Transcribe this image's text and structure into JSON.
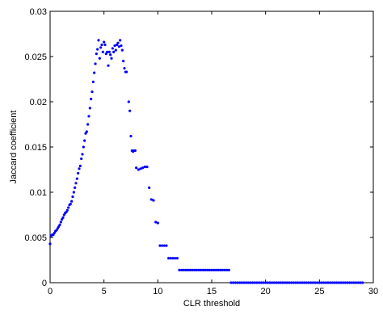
{
  "chart_data": {
    "type": "scatter",
    "title": "",
    "xlabel": "CLR threshold",
    "ylabel": "Jaccard coefficient",
    "xlim": [
      0,
      30
    ],
    "ylim": [
      0,
      0.03
    ],
    "xticks": [
      0,
      5,
      10,
      15,
      20,
      25,
      30
    ],
    "xtick_labels": [
      "0",
      "5",
      "10",
      "15",
      "20",
      "25",
      "30"
    ],
    "yticks": [
      0,
      0.005,
      0.01,
      0.015,
      0.02,
      0.025,
      0.03
    ],
    "ytick_labels": [
      "0",
      "0.005",
      "0.01",
      "0.015",
      "0.02",
      "0.025",
      "0.03"
    ],
    "grid": false,
    "legend": false,
    "marker_color": "#0000ff",
    "axis_color": "#000000",
    "series": [
      {
        "points": [
          [
            0.0,
            0.0043
          ],
          [
            0.1,
            0.0052
          ],
          [
            0.2,
            0.0053
          ],
          [
            0.3,
            0.0053
          ],
          [
            0.4,
            0.0055
          ],
          [
            0.5,
            0.0057
          ],
          [
            0.6,
            0.0058
          ],
          [
            0.7,
            0.006
          ],
          [
            0.8,
            0.0062
          ],
          [
            0.9,
            0.0064
          ],
          [
            1.0,
            0.0067
          ],
          [
            1.1,
            0.007
          ],
          [
            1.2,
            0.0072
          ],
          [
            1.3,
            0.0075
          ],
          [
            1.4,
            0.0077
          ],
          [
            1.5,
            0.0078
          ],
          [
            1.6,
            0.008
          ],
          [
            1.7,
            0.0083
          ],
          [
            1.8,
            0.0086
          ],
          [
            1.9,
            0.0087
          ],
          [
            2.0,
            0.009
          ],
          [
            2.1,
            0.0095
          ],
          [
            2.2,
            0.01
          ],
          [
            2.3,
            0.0105
          ],
          [
            2.4,
            0.011
          ],
          [
            2.5,
            0.0115
          ],
          [
            2.6,
            0.0121
          ],
          [
            2.7,
            0.0126
          ],
          [
            2.8,
            0.0129
          ],
          [
            2.9,
            0.0137
          ],
          [
            3.0,
            0.0142
          ],
          [
            3.1,
            0.015
          ],
          [
            3.2,
            0.0157
          ],
          [
            3.3,
            0.0165
          ],
          [
            3.4,
            0.0167
          ],
          [
            3.5,
            0.0175
          ],
          [
            3.6,
            0.0184
          ],
          [
            3.7,
            0.0193
          ],
          [
            3.8,
            0.0203
          ],
          [
            3.9,
            0.0211
          ],
          [
            4.0,
            0.0222
          ],
          [
            4.1,
            0.0232
          ],
          [
            4.2,
            0.0242
          ],
          [
            4.3,
            0.0253
          ],
          [
            4.4,
            0.0258
          ],
          [
            4.5,
            0.0268
          ],
          [
            4.6,
            0.0248
          ],
          [
            4.7,
            0.026
          ],
          [
            4.8,
            0.0263
          ],
          [
            4.9,
            0.0255
          ],
          [
            5.0,
            0.0266
          ],
          [
            5.1,
            0.0263
          ],
          [
            5.2,
            0.0253
          ],
          [
            5.3,
            0.0255
          ],
          [
            5.4,
            0.024
          ],
          [
            5.5,
            0.0255
          ],
          [
            5.6,
            0.0252
          ],
          [
            5.7,
            0.0248
          ],
          [
            5.8,
            0.0259
          ],
          [
            5.9,
            0.0255
          ],
          [
            6.0,
            0.0262
          ],
          [
            6.1,
            0.0257
          ],
          [
            6.2,
            0.0263
          ],
          [
            6.3,
            0.0265
          ],
          [
            6.4,
            0.0261
          ],
          [
            6.5,
            0.0268
          ],
          [
            6.6,
            0.0262
          ],
          [
            6.7,
            0.0257
          ],
          [
            6.8,
            0.0245
          ],
          [
            6.9,
            0.0237
          ],
          [
            7.0,
            0.0233
          ],
          [
            7.1,
            0.0233
          ],
          [
            7.3,
            0.02
          ],
          [
            7.4,
            0.019
          ],
          [
            7.5,
            0.0162
          ],
          [
            7.6,
            0.0146
          ],
          [
            7.7,
            0.0145
          ],
          [
            7.8,
            0.0146
          ],
          [
            7.9,
            0.0146
          ],
          [
            8.0,
            0.0127
          ],
          [
            8.2,
            0.0125
          ],
          [
            8.4,
            0.0126
          ],
          [
            8.6,
            0.0127
          ],
          [
            8.8,
            0.0128
          ],
          [
            9.0,
            0.0128
          ],
          [
            9.2,
            0.0105
          ],
          [
            9.4,
            0.0092
          ],
          [
            9.6,
            0.0091
          ],
          [
            9.8,
            0.0067
          ],
          [
            10.0,
            0.0066
          ],
          [
            10.2,
            0.0041
          ],
          [
            10.4,
            0.0041
          ],
          [
            10.6,
            0.0041
          ],
          [
            10.8,
            0.0041
          ],
          [
            11.0,
            0.0027
          ],
          [
            11.2,
            0.0027
          ],
          [
            11.4,
            0.0027
          ],
          [
            11.6,
            0.0027
          ],
          [
            11.8,
            0.0027
          ],
          [
            12.0,
            0.0014
          ],
          [
            12.2,
            0.0014
          ],
          [
            12.4,
            0.0014
          ],
          [
            12.6,
            0.0014
          ],
          [
            12.8,
            0.0014
          ],
          [
            13.0,
            0.0014
          ],
          [
            13.2,
            0.0014
          ],
          [
            13.4,
            0.0014
          ],
          [
            13.6,
            0.0014
          ],
          [
            13.8,
            0.0014
          ],
          [
            14.0,
            0.0014
          ],
          [
            14.2,
            0.0014
          ],
          [
            14.4,
            0.0014
          ],
          [
            14.6,
            0.0014
          ],
          [
            14.8,
            0.0014
          ],
          [
            15.0,
            0.0014
          ],
          [
            15.2,
            0.0014
          ],
          [
            15.4,
            0.0014
          ],
          [
            15.6,
            0.0014
          ],
          [
            15.8,
            0.0014
          ],
          [
            16.0,
            0.0014
          ],
          [
            16.2,
            0.0014
          ],
          [
            16.4,
            0.0014
          ],
          [
            16.6,
            0.0014
          ],
          [
            16.8,
            0.0
          ],
          [
            17.0,
            0.0
          ],
          [
            17.2,
            0.0
          ],
          [
            17.4,
            0.0
          ],
          [
            17.6,
            0.0
          ],
          [
            17.8,
            0.0
          ],
          [
            18.0,
            0.0
          ],
          [
            18.2,
            0.0
          ],
          [
            18.4,
            0.0
          ],
          [
            18.6,
            0.0
          ],
          [
            18.8,
            0.0
          ],
          [
            19.0,
            0.0
          ],
          [
            19.2,
            0.0
          ],
          [
            19.4,
            0.0
          ],
          [
            19.6,
            0.0
          ],
          [
            19.8,
            0.0
          ],
          [
            20.0,
            0.0
          ],
          [
            20.2,
            0.0
          ],
          [
            20.4,
            0.0
          ],
          [
            20.6,
            0.0
          ],
          [
            20.8,
            0.0
          ],
          [
            21.0,
            0.0
          ],
          [
            21.2,
            0.0
          ],
          [
            21.4,
            0.0
          ],
          [
            21.6,
            0.0
          ],
          [
            21.8,
            0.0
          ],
          [
            22.0,
            0.0
          ],
          [
            22.2,
            0.0
          ],
          [
            22.4,
            0.0
          ],
          [
            22.6,
            0.0
          ],
          [
            22.8,
            0.0
          ],
          [
            23.0,
            0.0
          ],
          [
            23.2,
            0.0
          ],
          [
            23.4,
            0.0
          ],
          [
            23.6,
            0.0
          ],
          [
            23.8,
            0.0
          ],
          [
            24.0,
            0.0
          ],
          [
            24.2,
            0.0
          ],
          [
            24.4,
            0.0
          ],
          [
            24.6,
            0.0
          ],
          [
            24.8,
            0.0
          ],
          [
            25.0,
            0.0
          ],
          [
            25.2,
            0.0
          ],
          [
            25.4,
            0.0
          ],
          [
            25.6,
            0.0
          ],
          [
            25.8,
            0.0
          ],
          [
            26.0,
            0.0
          ],
          [
            26.2,
            0.0
          ],
          [
            26.4,
            0.0
          ],
          [
            26.6,
            0.0
          ],
          [
            26.8,
            0.0
          ],
          [
            27.0,
            0.0
          ],
          [
            27.2,
            0.0
          ],
          [
            27.4,
            0.0
          ],
          [
            27.6,
            0.0
          ],
          [
            27.8,
            0.0
          ],
          [
            28.0,
            0.0
          ],
          [
            28.2,
            0.0
          ],
          [
            28.4,
            0.0
          ],
          [
            28.6,
            0.0
          ],
          [
            28.8,
            0.0
          ],
          [
            29.0,
            0.0
          ]
        ]
      }
    ]
  }
}
